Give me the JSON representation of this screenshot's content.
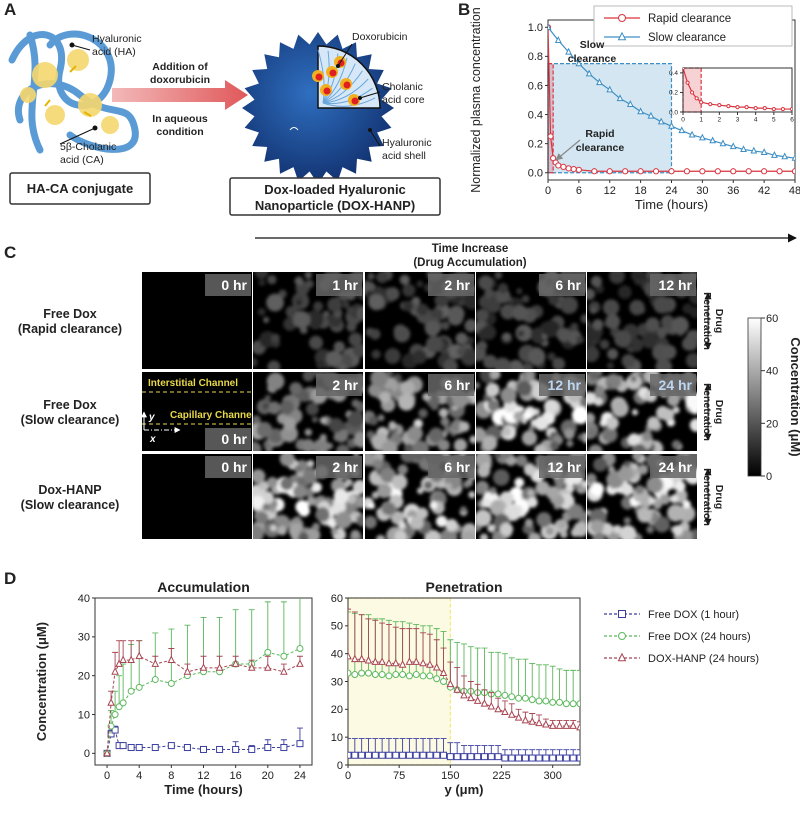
{
  "figure": {
    "panel_a": {
      "label": "A",
      "ha": [
        "Hyaluronic",
        "acid (HA)"
      ],
      "ca": [
        "5β-Cholanic",
        "acid (CA)"
      ],
      "arrow_top": [
        "Addition of",
        "doxorubicin"
      ],
      "arrow_bottom": [
        "In aqueous",
        "condition"
      ],
      "conjugate": "HA-CA conjugate",
      "dox": "Doxorubicin",
      "core": [
        "Cholanic",
        "acid core"
      ],
      "shell": [
        "Hyaluronic",
        "acid shell"
      ],
      "nanoparticle": [
        "Dox-loaded Hyaluronic",
        "Nanoparticle (DOX-HANP)"
      ]
    },
    "panel_b_label": "B",
    "panel_b_annotations": {
      "slow": [
        "Slow",
        "clearance"
      ],
      "rapid": [
        "Rapid",
        "clearance"
      ]
    },
    "panel_c": {
      "label": "C",
      "header": "Time Increase",
      "subheader": "(Drug Accumulation)",
      "penetration": [
        "Drug",
        "Penetration"
      ],
      "interstitial": "Interstitial Channel",
      "capillary": "Capillary Channel",
      "axis_y": "y",
      "axis_x": "x",
      "rows": [
        {
          "label": [
            "Free Dox",
            "(Rapid clearance)"
          ],
          "times": [
            "0 hr",
            "1 hr",
            "2 hr",
            "6 hr",
            "12 hr"
          ],
          "highlight": [
            false,
            false,
            false,
            false,
            false
          ]
        },
        {
          "label": [
            "Free Dox",
            "(Slow clearance)"
          ],
          "times": [
            "0 hr",
            "2 hr",
            "6 hr",
            "12 hr",
            "24 hr"
          ],
          "highlight": [
            false,
            false,
            false,
            true,
            true
          ]
        },
        {
          "label": [
            "Dox-HANP",
            "(Slow clearance)"
          ],
          "times": [
            "0 hr",
            "2 hr",
            "6 hr",
            "12 hr",
            "24 hr"
          ],
          "highlight": [
            false,
            false,
            false,
            false,
            false
          ]
        }
      ],
      "colorbar": {
        "title": "Concentration (μM)",
        "lim": [
          0,
          60
        ],
        "ticks": [
          0,
          20,
          40,
          60
        ]
      }
    },
    "panel_d_label": "D"
  },
  "chart_data": [
    {
      "type": "line",
      "xlabel": "Time (hours)",
      "ylabel": "Normalized plasma concentration",
      "xlim": [
        0,
        48
      ],
      "xticks": [
        0,
        6,
        12,
        18,
        24,
        30,
        36,
        42,
        48
      ],
      "ylim": [
        -0.05,
        1.05
      ],
      "yticks": [
        {
          "value": 0,
          "label": "0.0"
        },
        0.2,
        0.4,
        0.6,
        0.8,
        {
          "value": 1,
          "label": "1.0"
        }
      ],
      "legend": "upper right",
      "regions": [
        {
          "x": [
            0,
            24
          ],
          "top": 0.75,
          "color": "#3d8fc4"
        },
        {
          "x": [
            0,
            1
          ],
          "top": 0.75,
          "color": "#d9343f"
        }
      ],
      "series": [
        {
          "name": "Rapid clearance",
          "color": "#d9343f",
          "marker": "circle",
          "x": [
            0,
            0.5,
            1,
            1.5,
            2,
            3,
            4,
            5,
            6,
            9,
            12,
            15,
            18,
            21,
            24,
            27,
            30,
            33,
            36,
            39,
            42,
            45,
            48
          ],
          "values": [
            1,
            0.25,
            0.1,
            0.07,
            0.05,
            0.04,
            0.03,
            0.025,
            0.02,
            0.01,
            0.01,
            0.01,
            0.01,
            0.01,
            0.01,
            0.01,
            0.01,
            0.01,
            0.01,
            0.01,
            0.01,
            0.01,
            0.01
          ]
        },
        {
          "name": "Slow clearance",
          "color": "#3d8fc4",
          "marker": "triangle",
          "x": [
            0,
            2,
            4,
            6,
            8,
            10,
            12,
            14,
            16,
            18,
            20,
            22,
            24,
            26,
            28,
            30,
            32,
            34,
            36,
            38,
            40,
            42,
            44,
            46,
            48
          ],
          "values": [
            1,
            0.91,
            0.83,
            0.75,
            0.68,
            0.62,
            0.57,
            0.51,
            0.47,
            0.42,
            0.39,
            0.35,
            0.32,
            0.29,
            0.26,
            0.24,
            0.22,
            0.2,
            0.18,
            0.16,
            0.15,
            0.14,
            0.12,
            0.11,
            0.1
          ]
        }
      ]
    },
    {
      "type": "line",
      "xlim": [
        0,
        6
      ],
      "xticks": [
        0,
        1,
        2,
        3,
        4,
        5,
        6
      ],
      "ylim": [
        0,
        0.45
      ],
      "yticks": [
        {
          "value": 0,
          "label": "0.0"
        },
        0.2,
        0.4
      ],
      "regions": [
        {
          "x": [
            0,
            1
          ],
          "top": 0.45,
          "color": "#d9343f"
        }
      ],
      "series": [
        {
          "color": "#d9343f",
          "marker": "circle",
          "x": [
            0,
            0.25,
            0.5,
            0.75,
            1,
            1.5,
            2,
            2.5,
            3,
            3.5,
            4,
            4.5,
            5,
            5.5,
            6
          ],
          "values": [
            0.45,
            0.3,
            0.2,
            0.14,
            0.1,
            0.08,
            0.07,
            0.06,
            0.05,
            0.05,
            0.04,
            0.04,
            0.03,
            0.03,
            0.03
          ]
        }
      ]
    },
    {
      "type": "line",
      "title": "Accumulation",
      "xlabel": "Time (hours)",
      "ylabel": "Concentration (μM)",
      "xlim": [
        -1.5,
        25.5
      ],
      "xticks": [
        0,
        4,
        8,
        12,
        16,
        20,
        24
      ],
      "ylim": [
        -3,
        40
      ],
      "yticks": [
        0,
        10,
        20,
        30,
        40
      ],
      "x": [
        0,
        0.5,
        1,
        1.5,
        2,
        3,
        4,
        6,
        8,
        10,
        12,
        14,
        16,
        18,
        20,
        22,
        24
      ],
      "series": [
        {
          "color": "#3b3fa0",
          "marker": "square",
          "values": [
            0,
            5,
            6,
            2,
            2,
            1.5,
            1.5,
            1.5,
            2,
            1.5,
            1,
            1,
            1,
            1,
            1.5,
            1.5,
            2.5
          ],
          "errors": [
            0,
            1,
            1,
            0.5,
            0.5,
            0.5,
            0.5,
            0.5,
            0.5,
            0.5,
            0.5,
            0.5,
            2,
            1,
            2,
            2,
            4
          ]
        },
        {
          "color": "#5cb85c",
          "marker": "circle",
          "values": [
            0,
            7,
            10,
            12,
            13,
            16,
            17,
            19,
            18,
            20,
            21,
            21,
            23,
            23,
            26,
            25,
            27
          ],
          "errors": [
            0,
            4,
            6,
            8,
            10,
            12,
            12,
            12,
            14,
            13,
            14,
            14,
            14,
            14,
            13,
            14,
            14
          ]
        },
        {
          "color": "#a84552",
          "marker": "triangle",
          "values": [
            0,
            13,
            21,
            23,
            24,
            24,
            25,
            23,
            24,
            21,
            22,
            22,
            23,
            22,
            22,
            21,
            23
          ],
          "errors": [
            0,
            3,
            5,
            6,
            5,
            5,
            4,
            2,
            3,
            2,
            3,
            3,
            2,
            2,
            3,
            2,
            2
          ]
        }
      ]
    },
    {
      "type": "line",
      "title": "Penetration",
      "xlabel": "y (μm)",
      "xlim": [
        0,
        340
      ],
      "xticks": [
        0,
        75,
        150,
        225,
        300
      ],
      "ylim": [
        0,
        60
      ],
      "yticks": [
        0,
        10,
        20,
        30,
        40,
        50,
        60
      ],
      "legend": "right outside",
      "regions": [
        {
          "x": [
            0,
            150
          ],
          "top": 60,
          "color": "#f3ea7a"
        }
      ],
      "x": [
        0,
        10,
        20,
        30,
        40,
        50,
        60,
        70,
        80,
        90,
        100,
        110,
        120,
        130,
        140,
        150,
        160,
        170,
        180,
        190,
        200,
        210,
        220,
        230,
        240,
        250,
        260,
        270,
        280,
        290,
        300,
        310,
        320,
        330,
        340
      ],
      "series": [
        {
          "name": "Free DOX (1 hour)",
          "color": "#3b3fa0",
          "marker": "square",
          "values": [
            3.5,
            3.5,
            3.5,
            3.5,
            3.5,
            3.5,
            3.5,
            3.5,
            3.5,
            3.5,
            3.5,
            3.5,
            3.5,
            3.5,
            3.5,
            3,
            3,
            3,
            3,
            3,
            3,
            3,
            3,
            2.5,
            2.5,
            2.5,
            2.5,
            2.5,
            2.5,
            2.5,
            2.5,
            2.5,
            2.5,
            2.5,
            2.5
          ],
          "errors": [
            6,
            6,
            6,
            6,
            6,
            6,
            6,
            6,
            6,
            6,
            6,
            6,
            6,
            6,
            6,
            5,
            5,
            4,
            4,
            4,
            4,
            4,
            4,
            3,
            3,
            3,
            3,
            3,
            3,
            3,
            3,
            3,
            3,
            3,
            3
          ]
        },
        {
          "name": "Free DOX (24 hours)",
          "color": "#5cb85c",
          "marker": "circle",
          "values": [
            33,
            32.5,
            33,
            33,
            32.5,
            32.5,
            32,
            32.5,
            32.5,
            32,
            32.5,
            32,
            32,
            31,
            30,
            28,
            27,
            26.5,
            26.5,
            26,
            26,
            25.5,
            25.5,
            25,
            24.5,
            24,
            24,
            23.5,
            23,
            23,
            22.5,
            22.5,
            22,
            22,
            22
          ],
          "errors": [
            22,
            22,
            21,
            21,
            20,
            20,
            20,
            19,
            19,
            19,
            18,
            18,
            18,
            18,
            18,
            17,
            17,
            17,
            16,
            16,
            16,
            15,
            15,
            15,
            14,
            14,
            14,
            13,
            13,
            13,
            13,
            12,
            12,
            12,
            12
          ]
        },
        {
          "name": "DOX-HANP (24 hours)",
          "color": "#a84552",
          "marker": "triangle",
          "values": [
            39,
            38,
            38,
            37.5,
            37,
            37,
            36.5,
            36.5,
            36,
            37,
            37,
            36.5,
            36,
            35,
            33,
            29,
            27,
            25,
            24,
            23,
            22,
            21,
            20,
            19,
            18,
            17,
            16,
            15.5,
            15,
            14.5,
            14,
            14,
            14,
            14,
            13.5
          ],
          "errors": [
            17,
            17,
            16,
            15,
            15,
            14,
            14,
            13,
            13,
            12,
            12,
            11,
            11,
            10,
            9,
            8,
            8,
            7,
            6,
            6,
            5,
            5,
            4,
            4,
            4,
            3,
            3,
            3,
            3,
            2,
            2,
            2,
            2,
            2,
            2
          ]
        }
      ]
    }
  ]
}
